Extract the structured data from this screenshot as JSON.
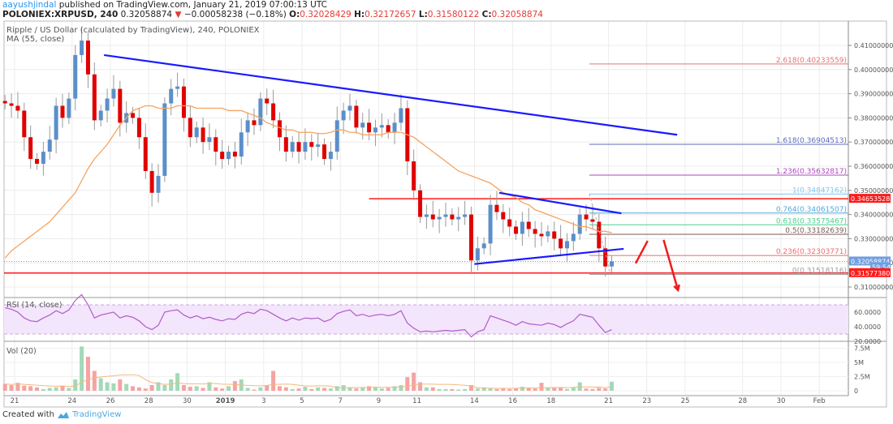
{
  "header": {
    "author": "aayushjindal",
    "published": " published on TradingView.com, January 21, 2019 07:00:13 UTC",
    "symbol": "POLONIEX:XRPUSD, 240",
    "last": "0.32058874",
    "change_arrow": "▼",
    "change": "−0.00058238 (−0.18%)",
    "o_label": "O:",
    "o": "0.32028429",
    "h_label": "H:",
    "h": "0.32172657",
    "l_label": "L:",
    "l": "0.31580122",
    "c_label": "C:",
    "c": "0.32058874"
  },
  "legend": {
    "title": "Ripple / US Dollar (calculated by TradingView), 240, POLONIEX",
    "ma": "MA (55, close)",
    "rsi": "RSI (14, close)",
    "vol": "Vol (20)"
  },
  "footer": {
    "created_with": "Created with",
    "brand": "TradingView"
  },
  "colors": {
    "up": "#5b8fc9",
    "down": "#e00000",
    "ma": "#f4a460",
    "trendline": "#1a1aff",
    "level": "#ff1a1a",
    "rsi": "#b05cc8",
    "rsi_band": "#f3e5fc",
    "vol_up": "#a3d9b8",
    "vol_down": "#f5a3a3",
    "last_price": "#6f9ee0"
  },
  "chart_data": {
    "type": "candlestick",
    "start": "2018-12-20T12:00Z",
    "interval_hours": 8,
    "ylim": [
      0.305,
      0.417
    ],
    "price_ticks": [
      "0.41000000",
      "0.40000000",
      "0.39000000",
      "0.38000000",
      "0.37000000",
      "0.36000000",
      "0.35000000",
      "0.34000000",
      "0.33000000",
      "0.32000000",
      "0.31000000"
    ],
    "date_ticks": [
      {
        "label": "21",
        "date": "2018-12-21"
      },
      {
        "label": "24",
        "date": "2018-12-24"
      },
      {
        "label": "26",
        "date": "2018-12-26"
      },
      {
        "label": "28",
        "date": "2018-12-28"
      },
      {
        "label": "30",
        "date": "2018-12-30"
      },
      {
        "label": "2019",
        "date": "2019-01-01"
      },
      {
        "label": "3",
        "date": "2019-01-03"
      },
      {
        "label": "5",
        "date": "2019-01-05"
      },
      {
        "label": "7",
        "date": "2019-01-07"
      },
      {
        "label": "9",
        "date": "2019-01-09"
      },
      {
        "label": "11",
        "date": "2019-01-11"
      },
      {
        "label": "14",
        "date": "2019-01-14"
      },
      {
        "label": "16",
        "date": "2019-01-16"
      },
      {
        "label": "18",
        "date": "2019-01-18"
      },
      {
        "label": "21",
        "date": "2019-01-21"
      },
      {
        "label": "23",
        "date": "2019-01-23"
      },
      {
        "label": "25",
        "date": "2019-01-25"
      },
      {
        "label": "28",
        "date": "2019-01-28"
      },
      {
        "label": "30",
        "date": "2019-01-30"
      },
      {
        "label": "Feb",
        "date": "2019-02-01"
      }
    ],
    "close": [
      0.386,
      0.385,
      0.383,
      0.372,
      0.363,
      0.361,
      0.366,
      0.371,
      0.385,
      0.38,
      0.388,
      0.406,
      0.412,
      0.398,
      0.379,
      0.383,
      0.388,
      0.392,
      0.378,
      0.382,
      0.38,
      0.372,
      0.358,
      0.349,
      0.356,
      0.386,
      0.392,
      0.393,
      0.38,
      0.372,
      0.376,
      0.37,
      0.372,
      0.366,
      0.363,
      0.366,
      0.364,
      0.374,
      0.379,
      0.377,
      0.388,
      0.386,
      0.379,
      0.372,
      0.366,
      0.37,
      0.366,
      0.37,
      0.368,
      0.369,
      0.363,
      0.366,
      0.379,
      0.383,
      0.385,
      0.376,
      0.378,
      0.374,
      0.376,
      0.377,
      0.374,
      0.378,
      0.384,
      0.362,
      0.35,
      0.339,
      0.34,
      0.338,
      0.339,
      0.34,
      0.338,
      0.339,
      0.34,
      0.321,
      0.326,
      0.328,
      0.344,
      0.341,
      0.338,
      0.335,
      0.332,
      0.337,
      0.334,
      0.332,
      0.331,
      0.333,
      0.33,
      0.326,
      0.329,
      0.332,
      0.34,
      0.338,
      0.337,
      0.326,
      0.3185,
      0.32058874
    ],
    "ma55": [
      0.322,
      0.325,
      0.327,
      0.329,
      0.331,
      0.333,
      0.335,
      0.337,
      0.34,
      0.343,
      0.346,
      0.349,
      0.354,
      0.359,
      0.363,
      0.366,
      0.369,
      0.373,
      0.377,
      0.38,
      0.383,
      0.384,
      0.385,
      0.385,
      0.384,
      0.384,
      0.384,
      0.385,
      0.385,
      0.385,
      0.384,
      0.384,
      0.384,
      0.384,
      0.384,
      0.383,
      0.383,
      0.383,
      0.382,
      0.381,
      0.38,
      0.378,
      0.377,
      0.376,
      0.375,
      0.375,
      0.374,
      0.374,
      0.374,
      0.3735,
      0.3735,
      0.374,
      0.375,
      0.375,
      0.374,
      0.374,
      0.373,
      0.373,
      0.373,
      0.373,
      0.374,
      0.374,
      0.374,
      0.373,
      0.372,
      0.37,
      0.368,
      0.366,
      0.364,
      0.362,
      0.36,
      0.358,
      0.357,
      0.356,
      0.355,
      0.354,
      0.353,
      0.351,
      0.349,
      0.348,
      0.347,
      0.345,
      0.344,
      0.342,
      0.341,
      0.34,
      0.339,
      0.338,
      0.337,
      0.336,
      0.335,
      0.335,
      0.334,
      0.333,
      0.333,
      0.3325
    ],
    "rsi": {
      "ticks": [
        "60.0000",
        "40.0000",
        "20.0000"
      ],
      "band": [
        30,
        70
      ],
      "values": [
        66,
        64,
        60,
        52,
        48,
        47,
        52,
        56,
        62,
        58,
        63,
        76,
        84,
        70,
        52,
        56,
        58,
        60,
        52,
        55,
        53,
        48,
        40,
        36,
        42,
        60,
        62,
        63,
        56,
        52,
        55,
        51,
        53,
        50,
        48,
        51,
        50,
        57,
        60,
        58,
        64,
        62,
        57,
        52,
        48,
        52,
        49,
        52,
        51,
        52,
        47,
        50,
        58,
        61,
        63,
        55,
        57,
        54,
        56,
        57,
        55,
        57,
        62,
        45,
        38,
        33,
        34,
        33,
        34,
        35,
        34,
        35,
        36,
        26,
        33,
        36,
        55,
        52,
        49,
        46,
        42,
        47,
        44,
        43,
        42,
        45,
        43,
        39,
        44,
        48,
        57,
        55,
        53,
        42,
        32,
        36
      ]
    },
    "volume": {
      "ticks": [
        "7.5M",
        "5M",
        "2.5M",
        "0"
      ],
      "values_millions": [
        1.2,
        1.0,
        1.4,
        0.9,
        0.8,
        0.6,
        0.3,
        0.5,
        0.6,
        0.9,
        0.5,
        2.0,
        7.8,
        6.0,
        3.5,
        2.2,
        1.5,
        1.3,
        2.0,
        1.2,
        0.8,
        0.6,
        0.4,
        1.0,
        1.5,
        1.0,
        2.0,
        3.1,
        1.0,
        0.7,
        0.8,
        0.5,
        1.5,
        0.6,
        0.4,
        0.8,
        1.7,
        2.0,
        0.5,
        0.2,
        0.6,
        1.0,
        3.5,
        0.8,
        0.6,
        0.3,
        0.4,
        0.7,
        0.3,
        0.6,
        0.5,
        0.4,
        0.8,
        1.0,
        0.6,
        0.4,
        0.5,
        0.8,
        0.6,
        0.4,
        0.5,
        0.8,
        1.0,
        2.4,
        3.2,
        1.5,
        0.6,
        0.6,
        0.3,
        0.3,
        0.3,
        0.2,
        0.3,
        1.0,
        0.4,
        0.6,
        0.5,
        0.3,
        0.4,
        0.3,
        0.4,
        0.7,
        0.5,
        0.4,
        1.4,
        0.5,
        0.6,
        0.5,
        0.3,
        0.6,
        1.5,
        0.4,
        0.3,
        0.5,
        0.4,
        1.6
      ]
    },
    "price_labels": [
      {
        "text": "0.34653528",
        "price": 0.34653528,
        "color": "#ff1a1a"
      },
      {
        "text": "0.32058874",
        "price": 0.32058874,
        "color": "#6f9ee0"
      },
      {
        "text": "59:54",
        "price": 0.3182,
        "color": "#6f9ee0"
      },
      {
        "text": "0.31577380",
        "price": 0.3157738,
        "color": "#ff1a1a"
      }
    ],
    "fibonacci": {
      "from": "2019-01-20T00:00Z",
      "levels": [
        {
          "label": "2.618(0.40233559)",
          "price": 0.40233559,
          "color": "#e57373"
        },
        {
          "label": "1.618(0.36904513)",
          "price": 0.36904513,
          "color": "#5c6bc0"
        },
        {
          "label": "1.236(0.35632817)",
          "price": 0.35632817,
          "color": "#ab47bc"
        },
        {
          "label": "1(0.34847162)",
          "price": 0.34847162,
          "color": "#81c7f0"
        },
        {
          "label": "0.764(0.34061507)",
          "price": 0.34061507,
          "color": "#4fa8e0"
        },
        {
          "label": "0.618(0.33575467)",
          "price": 0.33575467,
          "color": "#4ccf8f"
        },
        {
          "label": "0.5(0.33182639)",
          "price": 0.33182639,
          "color": "#7b5a5a"
        },
        {
          "label": "0.236(0.32303771)",
          "price": 0.32303771,
          "color": "#ef6b6b"
        },
        {
          "label": "0(0.31518116)",
          "price": 0.31518116,
          "color": "#9e9e9e"
        }
      ]
    },
    "horizontal_lines": [
      {
        "price": 0.34653528,
        "from": "2019-01-08T12:00Z"
      },
      {
        "price": 0.3157738,
        "from": "2018-12-20T00:00Z"
      }
    ],
    "trendlines": [
      {
        "from": [
          "2018-12-25T16:00Z",
          0.406
        ],
        "to": [
          "2019-01-24T14:00Z",
          0.373
        ]
      },
      {
        "from": [
          "2019-01-15T07:00Z",
          0.349
        ],
        "to": [
          "2019-01-21T16:00Z",
          0.3405
        ]
      },
      {
        "from": [
          "2019-01-14T00:00Z",
          0.3195
        ],
        "to": [
          "2019-01-21T19:00Z",
          0.3258
        ]
      }
    ],
    "fib_trend": {
      "from": [
        "2019-01-20T00:00Z",
        0.3485
      ],
      "to": [
        "2019-01-21T03:00Z",
        0.3152
      ]
    },
    "arrows": [
      {
        "from": [
          "2019-01-22T10:00Z",
          0.3198
        ],
        "to": [
          "2019-01-23T01:00Z",
          0.3291
        ],
        "head": false
      },
      {
        "from": [
          "2019-01-23T21:00Z",
          0.3295
        ],
        "to": [
          "2019-01-24T15:00Z",
          0.3087
        ],
        "head": true
      }
    ]
  }
}
